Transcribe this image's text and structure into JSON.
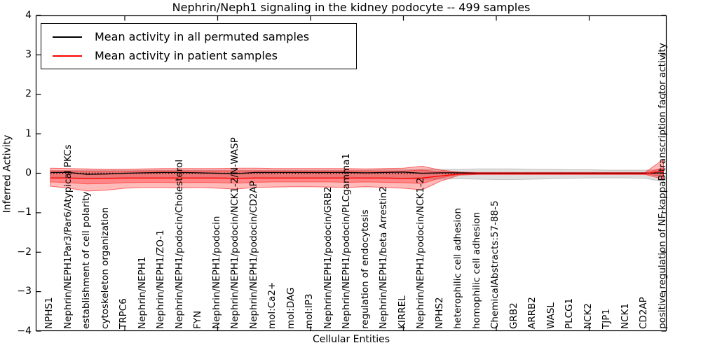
{
  "legend": {
    "items": [
      {
        "label": "Mean activity in all permuted samples",
        "color": "#000000"
      },
      {
        "label": "Mean activity in patient samples",
        "color": "#ff0000"
      }
    ]
  },
  "chart_data": {
    "type": "line",
    "title": "Nephrin/Neph1 signaling in the kidney podocyte -- 499 samples",
    "xlabel": "Cellular Entities",
    "ylabel": "Inferred Activity",
    "ylim": [
      -4,
      4
    ],
    "ytick_labels": [
      "4",
      "3",
      "2",
      "1",
      "0",
      "−1",
      "−2",
      "−3",
      "−4"
    ],
    "grid": false,
    "legend_position": "upper left",
    "categories": [
      "NPHS1",
      "Nephrin/NEPH1Par3/Par6/Atypical PKCs",
      "establishment of cell polarity",
      "cytoskeleton organization",
      "TRPC6",
      "Nephrin/NEPH1",
      "Nephrin/NEPH1/ZO-1",
      "Nephrin/NEPH1/podocin/Cholesterol",
      "FYN",
      "Nephrin/NEPH1/podocin",
      "Nephrin/NEPH1/podocin/NCK1-2/N-WASP",
      "Nephrin/NEPH1/podocin/CD2AP",
      "mol:Ca2+",
      "mol:DAG",
      "mol:IP3",
      "Nephrin/NEPH1/podocin/GRB2",
      "Nephrin/NEPH1/podocin/PLCgamma1",
      "regulation of endocytosis",
      "Nephrin/NEPH1/beta Arrestin2",
      "KIRREL",
      "Nephrin/NEPH1/podocin/NCK1-2",
      "NPHS2",
      "heterophilic cell adhesion",
      "homophilic cell adhesion",
      "ChemicalAbstracts:57-88-5",
      "GRB2",
      "ARRB2",
      "WASL",
      "PLCG1",
      "NCK2",
      "TJP1",
      "NCK1",
      "CD2AP",
      "positive regulation of NF-kappaB transcription factor activity"
    ],
    "series": [
      {
        "name": "Mean activity in all permuted samples",
        "color": "#000000",
        "values": [
          0.02,
          0.02,
          -0.03,
          -0.02,
          0.0,
          0.01,
          0.02,
          0.02,
          0.01,
          0.0,
          -0.01,
          0.02,
          0.02,
          0.02,
          0.02,
          0.02,
          0.02,
          0.01,
          0.02,
          0.03,
          0.0,
          0.01,
          0.01,
          0.0,
          0.0,
          0.0,
          0.0,
          0.0,
          0.0,
          0.0,
          0.0,
          0.0,
          0.0,
          0.01
        ]
      },
      {
        "name": "Mean activity in patient samples",
        "color": "#ff0000",
        "values": [
          -0.12,
          -0.12,
          -0.14,
          -0.13,
          -0.12,
          -0.12,
          -0.12,
          -0.12,
          -0.12,
          -0.12,
          -0.13,
          -0.12,
          -0.12,
          -0.12,
          -0.12,
          -0.12,
          -0.12,
          -0.12,
          -0.12,
          -0.13,
          -0.12,
          -0.07,
          -0.02,
          -0.01,
          -0.01,
          -0.01,
          -0.01,
          -0.01,
          -0.01,
          -0.01,
          -0.01,
          -0.01,
          -0.01,
          0.06
        ]
      }
    ],
    "reference_line": 0,
    "bands": [
      {
        "name": "permuted-std-band",
        "fill": "rgba(0,0,0,0.13)",
        "edge": "rgba(0,0,0,0.18)",
        "upper": [
          0.07,
          0.07,
          0.08,
          0.08,
          0.08,
          0.08,
          0.08,
          0.08,
          0.08,
          0.08,
          0.08,
          0.08,
          0.08,
          0.08,
          0.08,
          0.08,
          0.08,
          0.08,
          0.09,
          0.09,
          0.1,
          0.1,
          0.1,
          0.11,
          0.11,
          0.11,
          0.1,
          0.1,
          0.09,
          0.09,
          0.08,
          0.08,
          0.08,
          0.09
        ],
        "lower": [
          -0.1,
          -0.11,
          -0.12,
          -0.12,
          -0.12,
          -0.12,
          -0.12,
          -0.12,
          -0.12,
          -0.12,
          -0.12,
          -0.12,
          -0.12,
          -0.12,
          -0.12,
          -0.12,
          -0.12,
          -0.12,
          -0.13,
          -0.14,
          -0.15,
          -0.15,
          -0.14,
          -0.15,
          -0.16,
          -0.16,
          -0.15,
          -0.14,
          -0.13,
          -0.12,
          -0.12,
          -0.12,
          -0.13,
          -0.21
        ]
      },
      {
        "name": "patient-std-outer-band",
        "fill": "rgba(255,0,0,0.27)",
        "edge": "rgba(255,0,0,0.55)",
        "upper": [
          0.13,
          0.12,
          0.11,
          0.1,
          0.1,
          0.11,
          0.12,
          0.12,
          0.12,
          0.12,
          0.13,
          0.13,
          0.12,
          0.12,
          0.12,
          0.12,
          0.12,
          0.11,
          0.12,
          0.13,
          0.18,
          0.08,
          0.03,
          0.02,
          0.02,
          0.02,
          0.02,
          0.02,
          0.02,
          0.02,
          0.02,
          0.02,
          0.02,
          0.35
        ],
        "lower": [
          -0.33,
          -0.38,
          -0.45,
          -0.43,
          -0.38,
          -0.36,
          -0.36,
          -0.37,
          -0.36,
          -0.38,
          -0.4,
          -0.36,
          -0.35,
          -0.34,
          -0.34,
          -0.35,
          -0.36,
          -0.34,
          -0.36,
          -0.38,
          -0.42,
          -0.2,
          -0.05,
          -0.03,
          -0.03,
          -0.03,
          -0.03,
          -0.03,
          -0.03,
          -0.03,
          -0.03,
          -0.03,
          -0.03,
          -0.15
        ]
      },
      {
        "name": "patient-std-inner-band",
        "fill": "rgba(255,0,0,0.27)",
        "edge": "rgba(255,0,0,0.45)",
        "upper": [
          0.06,
          0.06,
          0.05,
          0.05,
          0.05,
          0.06,
          0.06,
          0.06,
          0.06,
          0.06,
          0.06,
          0.06,
          0.06,
          0.06,
          0.06,
          0.06,
          0.06,
          0.06,
          0.06,
          0.06,
          0.08,
          0.04,
          0.01,
          0.01,
          0.01,
          0.01,
          0.01,
          0.01,
          0.01,
          0.01,
          0.01,
          0.01,
          0.01,
          0.14
        ],
        "lower": [
          -0.22,
          -0.24,
          -0.27,
          -0.26,
          -0.24,
          -0.23,
          -0.23,
          -0.24,
          -0.23,
          -0.24,
          -0.25,
          -0.23,
          -0.22,
          -0.22,
          -0.22,
          -0.22,
          -0.23,
          -0.22,
          -0.23,
          -0.24,
          -0.26,
          -0.12,
          -0.03,
          -0.02,
          -0.02,
          -0.02,
          -0.02,
          -0.02,
          -0.02,
          -0.02,
          -0.02,
          -0.02,
          -0.02,
          -0.08
        ]
      }
    ]
  }
}
